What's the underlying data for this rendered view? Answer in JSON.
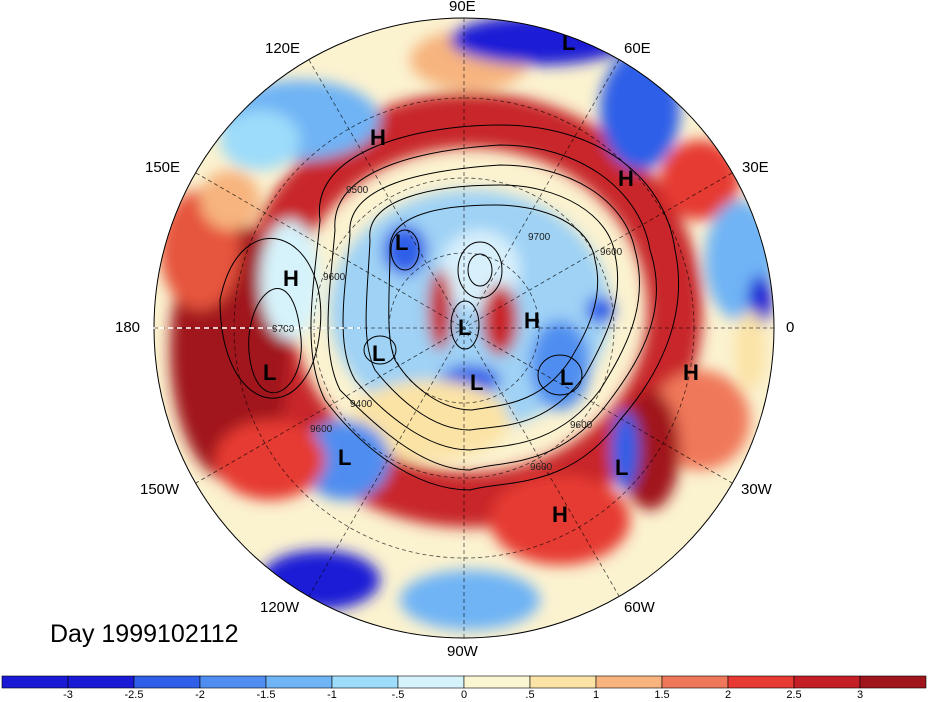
{
  "title": "Day 1999102112",
  "longitude_labels": {
    "lon_90e": "90E",
    "lon_60e": "60E",
    "lon_120e": "120E",
    "lon_30e": "30E",
    "lon_150e": "150E",
    "lon_0": "0",
    "lon_180": "180",
    "lon_30w": "30W",
    "lon_150w": "150W",
    "lon_60w": "60W",
    "lon_120w": "120W",
    "lon_90w": "90W"
  },
  "pressure_centers": [
    "L",
    "H",
    "H",
    "L",
    "H",
    "L",
    "H",
    "L",
    "L",
    "L",
    "H",
    "L",
    "L",
    "L",
    "H"
  ],
  "contour_labels": [
    "9500",
    "9700",
    "9600",
    "9600",
    "9700",
    "9600",
    "9400",
    "9600",
    "9600"
  ],
  "colorbar": {
    "colors": [
      "#1a1ad6",
      "#2f5fe8",
      "#4f8ef0",
      "#6fb4f5",
      "#9ddcfa",
      "#d6f3fb",
      "#fbf6d2",
      "#fbe3a6",
      "#f7b47e",
      "#f0785a",
      "#e63a32",
      "#c41f26",
      "#a0151c"
    ],
    "labels": [
      "-3",
      "-2.5",
      "-2",
      "-1.5",
      "-1",
      "-.5",
      "0",
      ".5",
      "1",
      "1.5",
      "2",
      "2.5",
      "3"
    ]
  }
}
